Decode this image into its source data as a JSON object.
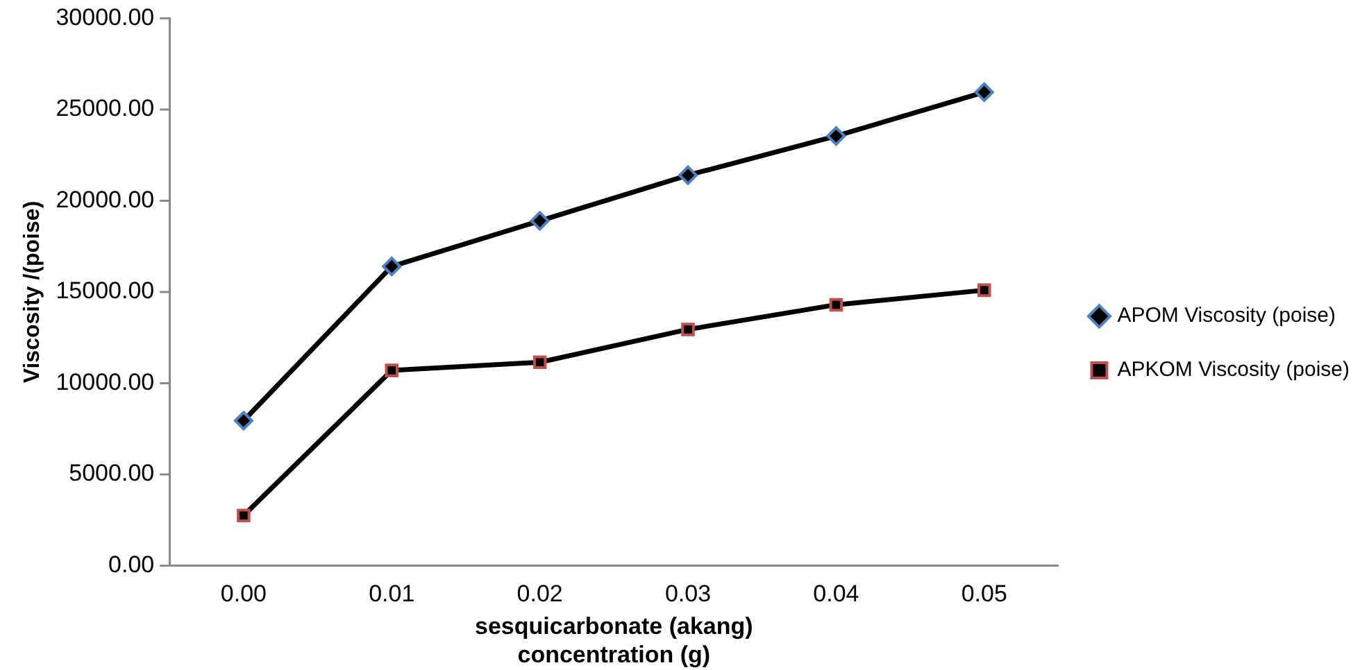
{
  "chart_data": {
    "type": "line",
    "xlabel": "sesquicarbonate (akang) concentration (g)",
    "ylabel": "Viscosity /(poise)",
    "categories": [
      "0.00",
      "0.01",
      "0.02",
      "0.03",
      "0.04",
      "0.05"
    ],
    "series": [
      {
        "name": "APOM Viscosity (poise)",
        "color": "#4f81bd",
        "marker": "diamond",
        "values": [
          7950,
          16400,
          18900,
          21400,
          23550,
          25950
        ]
      },
      {
        "name": "APKOM Viscosity (poise)",
        "color": "#c0504d",
        "marker": "square",
        "values": [
          2750,
          10700,
          11150,
          12950,
          14300,
          15100
        ]
      }
    ],
    "ylim": [
      0,
      30000
    ],
    "yticks": [
      {
        "value": 0,
        "label": "0.00"
      },
      {
        "value": 5000,
        "label": "5000.00"
      },
      {
        "value": 10000,
        "label": "10000.00"
      },
      {
        "value": 15000,
        "label": "15000.00"
      },
      {
        "value": 20000,
        "label": "20000.00"
      },
      {
        "value": 25000,
        "label": "25000.00"
      },
      {
        "value": 30000,
        "label": "30000.00"
      }
    ],
    "grid": false,
    "legend": "right",
    "line_style": "solid"
  }
}
